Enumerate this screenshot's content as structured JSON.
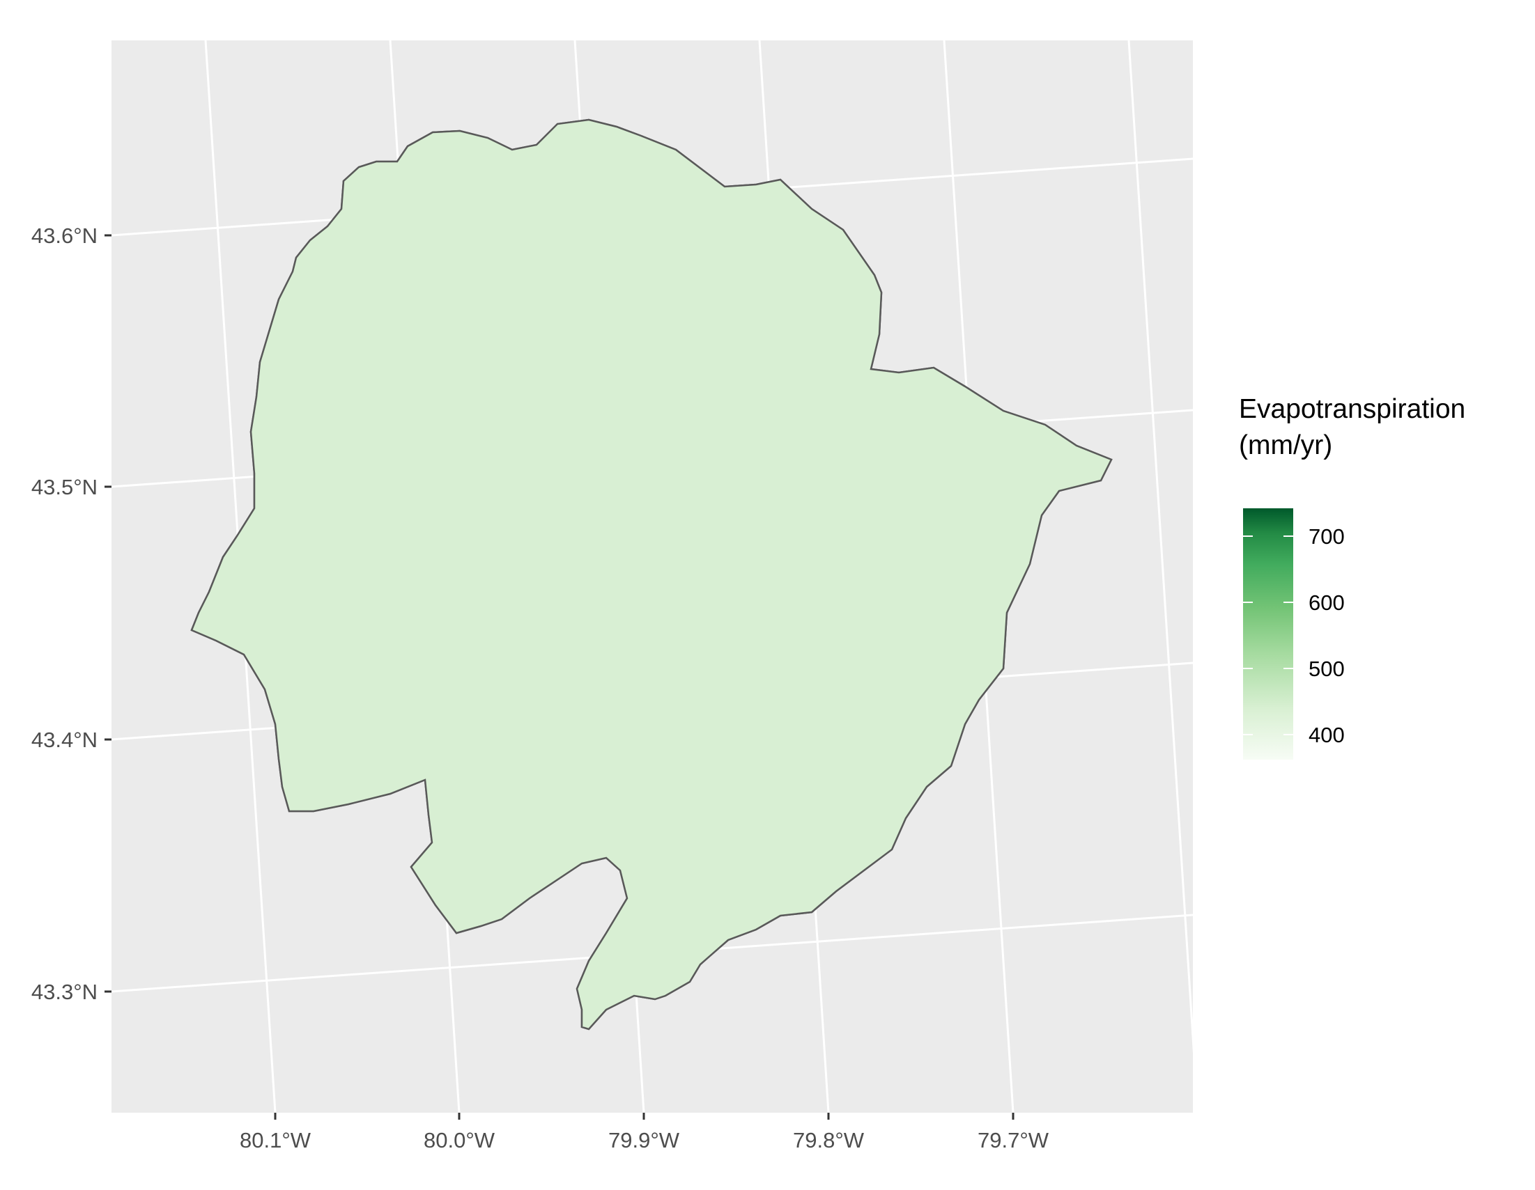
{
  "map": {
    "legend": {
      "title_line1": "Evapotranspiration",
      "title_line2": "(mm/yr)",
      "ticks": [
        "700",
        "600",
        "500",
        "400"
      ],
      "min": 350,
      "max": 740,
      "colors": [
        "#f7fcf5",
        "#c7e9c0",
        "#74c476",
        "#41ab5d",
        "#238b45",
        "#00592b"
      ]
    },
    "lat_labels": [
      "43.6°N",
      "43.5°N",
      "43.4°N",
      "43.3°N"
    ],
    "lon_labels": [
      "80.1°W",
      "80.0°W",
      "79.9°W",
      "79.8°W",
      "79.7°W"
    ],
    "colors": {
      "panel_background": "#ebebeb",
      "grid_line": "#ffffff",
      "boundary_line": "#595959",
      "low_et": "#d8efd3",
      "mid_et": "#78c679",
      "high_et": "#00592b"
    }
  }
}
